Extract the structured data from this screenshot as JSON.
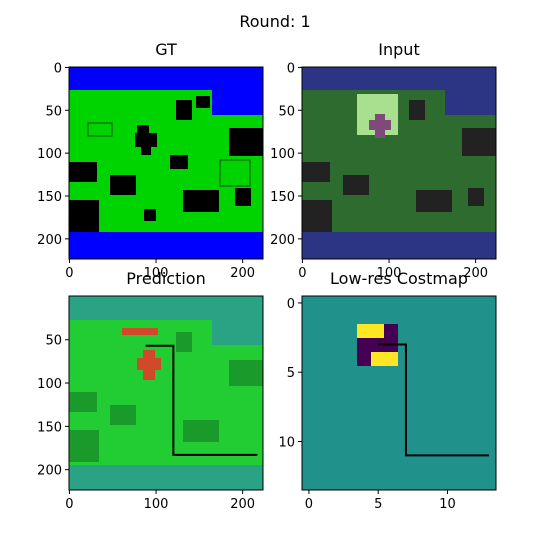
{
  "title": "Round: 1",
  "chart_data": [
    {
      "type": "image",
      "title": "GT",
      "xlim": [
        -0.5,
        223.5
      ],
      "ylim": [
        223.5,
        -0.5
      ],
      "xticks": [
        0,
        100,
        200
      ],
      "yticks": [
        0,
        50,
        100,
        150,
        200
      ]
    },
    {
      "type": "image",
      "title": "Input",
      "xlim": [
        -0.5,
        223.5
      ],
      "ylim": [
        223.5,
        -0.5
      ],
      "xticks": [
        0,
        100,
        200
      ],
      "yticks": [
        0,
        50,
        100,
        150,
        200
      ]
    },
    {
      "type": "image",
      "title": "Prediction",
      "xlim": [
        -0.5,
        223.5
      ],
      "ylim": [
        223.5,
        -0.5
      ],
      "xticks": [
        0,
        100,
        200
      ],
      "yticks": [
        50,
        100,
        150,
        200
      ],
      "series": [
        {
          "color": "#000000",
          "x": [
            88,
            120,
            120,
            217
          ],
          "values": [
            57,
            57,
            183,
            183
          ]
        }
      ]
    },
    {
      "type": "image",
      "title": "Low-res Costmap",
      "xlim": [
        -0.5,
        13.5
      ],
      "ylim": [
        13.5,
        -0.5
      ],
      "xticks": [
        0,
        5,
        10
      ],
      "yticks": [
        0,
        5,
        10
      ],
      "series": [
        {
          "color": "#000000",
          "x": [
            5,
            7,
            7,
            13
          ],
          "values": [
            3,
            3,
            11,
            11
          ]
        }
      ]
    }
  ]
}
